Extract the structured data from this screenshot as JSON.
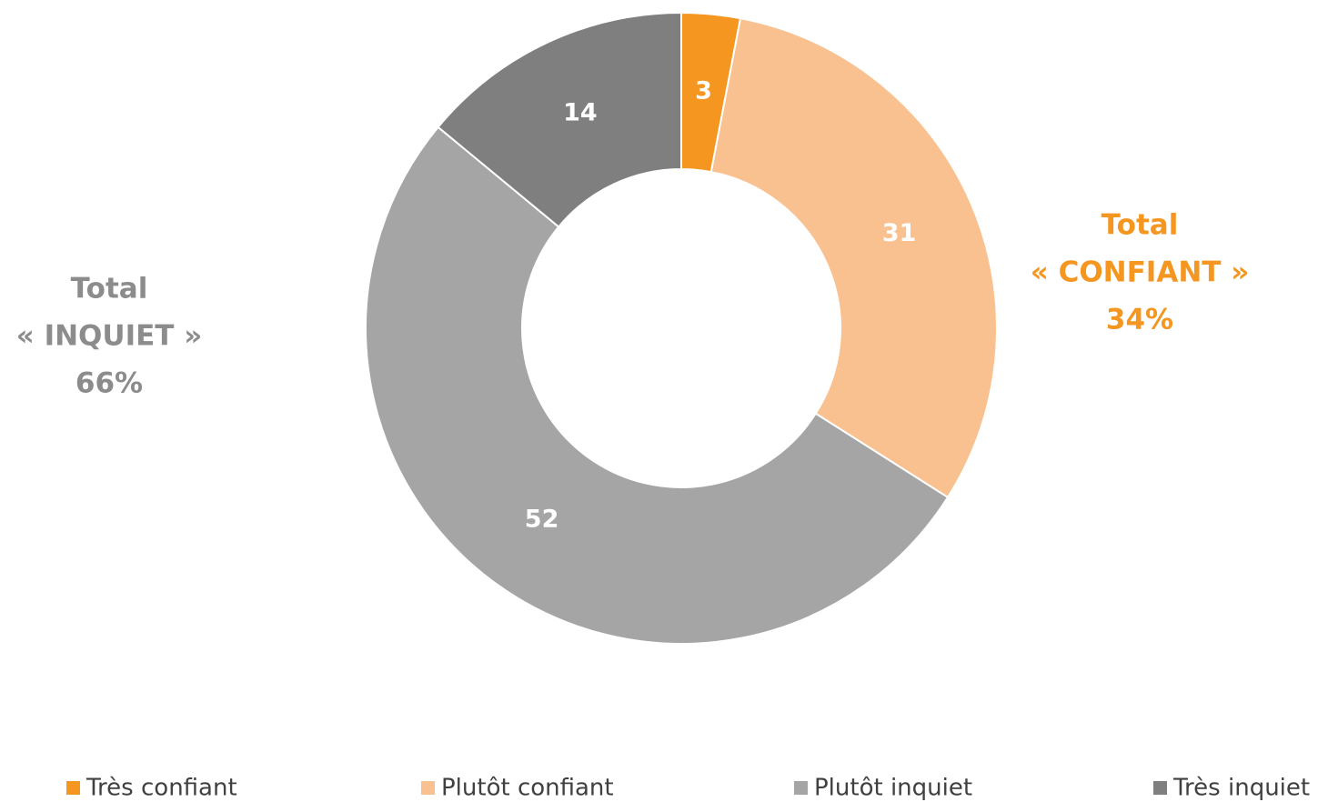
{
  "chart_data": {
    "type": "donut",
    "categories": [
      "Très confiant",
      "Plutôt confiant",
      "Plutôt inquiet",
      "Très inquiet"
    ],
    "values": [
      3,
      31,
      52,
      14
    ],
    "colors": [
      "#F4961F",
      "#F9C190",
      "#A5A5A5",
      "#7F7F7F"
    ],
    "annotations": [
      {
        "lines": [
          "Total",
          "« CONFIANT »",
          "34%"
        ],
        "color": "#F4961F"
      },
      {
        "lines": [
          "Total",
          "« INQUIET »",
          "66%"
        ],
        "color": "#8C8C8C"
      }
    ],
    "legend": "bottom"
  }
}
